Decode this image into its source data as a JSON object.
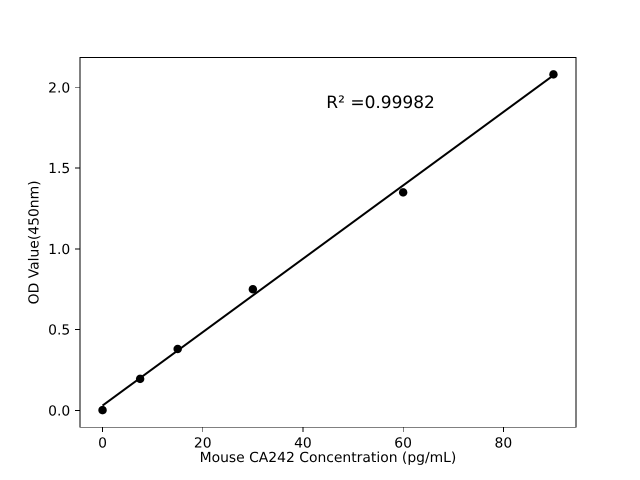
{
  "figure": {
    "background_color": "#ffffff",
    "ink_color": "#000000"
  },
  "chart_data": {
    "type": "scatter",
    "title": "",
    "xlabel": "Mouse CA242 Concentration (pg/mL)",
    "ylabel": "OD Value(450nm)",
    "annotation": {
      "text": "R² =0.99982",
      "x": 45,
      "y": 1.9,
      "fontsize_px": 17
    },
    "x": [
      0,
      7.5,
      15,
      30,
      60,
      90
    ],
    "y": [
      0.002,
      0.195,
      0.38,
      0.75,
      1.35,
      2.08
    ],
    "fit_line": {
      "kind": "linear_regression",
      "x_start": 0,
      "y_start": 0.03,
      "x_end": 90,
      "y_end": 2.074,
      "r_squared": 0.99982
    },
    "xlim": [
      -4.5,
      94.5
    ],
    "ylim": [
      -0.104,
      2.184
    ],
    "xticks": [
      0,
      20,
      40,
      60,
      80
    ],
    "xtick_labels": [
      "0",
      "20",
      "40",
      "60",
      "80"
    ],
    "yticks": [
      0.0,
      0.5,
      1.0,
      1.5,
      2.0
    ],
    "ytick_labels": [
      "0.0",
      "0.5",
      "1.0",
      "1.5",
      "2.0"
    ],
    "grid": false,
    "legend": null,
    "marker": "o",
    "marker_color": "#000000",
    "line_color": "#000000"
  }
}
